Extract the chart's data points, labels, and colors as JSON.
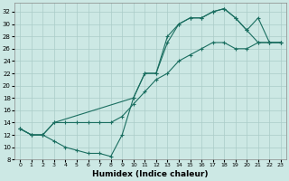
{
  "xlabel": "Humidex (Indice chaleur)",
  "bg_color": "#cce8e4",
  "line_color": "#1a6e60",
  "grid_color": "#aaccc8",
  "xlim": [
    -0.5,
    23.5
  ],
  "ylim": [
    8,
    33.5
  ],
  "yticks": [
    8,
    10,
    12,
    14,
    16,
    18,
    20,
    22,
    24,
    26,
    28,
    30,
    32
  ],
  "xticks": [
    0,
    1,
    2,
    3,
    4,
    5,
    6,
    7,
    8,
    9,
    10,
    11,
    12,
    13,
    14,
    15,
    16,
    17,
    18,
    19,
    20,
    21,
    22,
    23
  ],
  "line1_x": [
    0,
    1,
    2,
    3,
    4,
    5,
    6,
    7,
    8,
    9,
    10,
    11,
    12,
    13,
    14,
    15,
    16,
    17,
    18,
    19,
    20,
    21,
    22,
    23
  ],
  "line1_y": [
    13,
    12,
    12,
    11,
    10,
    9.5,
    9,
    9,
    8.5,
    12,
    18,
    22,
    22,
    27,
    30,
    31,
    31,
    32,
    32.5,
    31,
    29,
    27,
    27,
    27
  ],
  "line2_x": [
    0,
    1,
    2,
    3,
    4,
    5,
    6,
    7,
    8,
    9,
    10,
    11,
    12,
    13,
    14,
    15,
    16,
    17,
    18,
    19,
    20,
    21,
    22,
    23
  ],
  "line2_y": [
    13,
    12,
    12,
    14,
    14,
    14,
    14,
    14,
    14,
    15,
    17,
    19,
    21,
    22,
    24,
    25,
    26,
    27,
    27,
    26,
    26,
    27,
    27,
    27
  ],
  "line3_x": [
    0,
    1,
    2,
    3,
    10,
    11,
    12,
    13,
    14,
    15,
    16,
    17,
    18,
    19,
    20,
    21,
    22,
    23
  ],
  "line3_y": [
    13,
    12,
    12,
    14,
    18,
    22,
    22,
    28,
    30,
    31,
    31,
    32,
    32.5,
    31,
    29,
    31,
    27,
    27
  ]
}
